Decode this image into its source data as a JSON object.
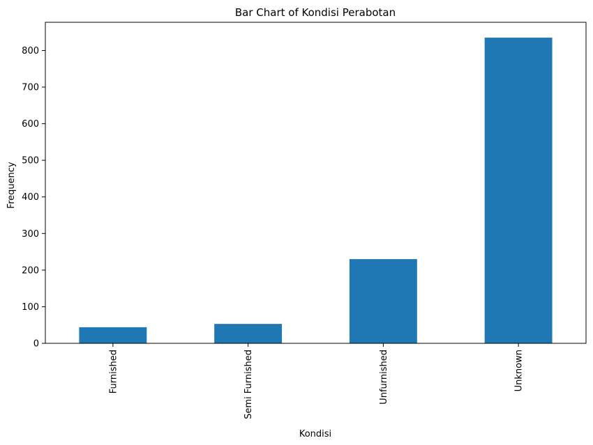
{
  "chart_data": {
    "type": "bar",
    "title": "Bar Chart of Kondisi Perabotan",
    "xlabel": "Kondisi",
    "ylabel": "Frequency",
    "categories": [
      "Furnished",
      "Semi Furnished",
      "Unfurnished",
      "Unknown"
    ],
    "values": [
      44,
      53,
      230,
      835
    ],
    "ylim": [
      0,
      877
    ],
    "yticks": [
      0,
      100,
      200,
      300,
      400,
      500,
      600,
      700,
      800
    ],
    "bar_color": "#1f77b4",
    "grid": false,
    "legend": "none"
  }
}
